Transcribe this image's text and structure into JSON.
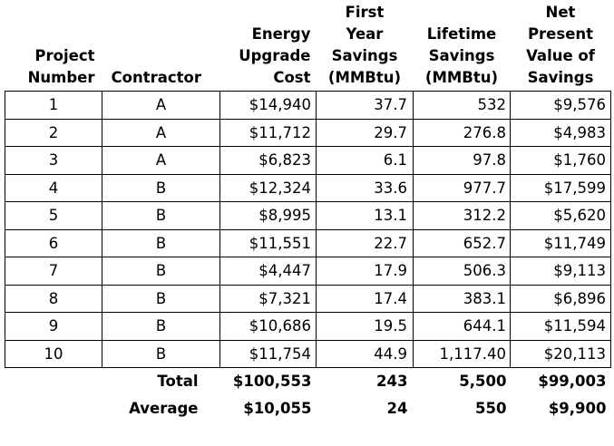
{
  "headers": {
    "project_number": [
      "Project",
      "Number"
    ],
    "contractor": [
      "Contractor"
    ],
    "energy_upgrade_cost": [
      "Energy",
      "Upgrade",
      "Cost"
    ],
    "first_year_savings": [
      "First",
      "Year",
      "Savings",
      "(MMBtu)"
    ],
    "lifetime_savings": [
      "Lifetime",
      "Savings",
      "(MMBtu)"
    ],
    "npv_savings": [
      "Net",
      "Present",
      "Value of",
      "Savings"
    ]
  },
  "rows": [
    {
      "project": "1",
      "contractor": "A",
      "cost": "$14,940",
      "first_year": "37.7",
      "lifetime": "532",
      "npv": "$9,576"
    },
    {
      "project": "2",
      "contractor": "A",
      "cost": "$11,712",
      "first_year": "29.7",
      "lifetime": "276.8",
      "npv": "$4,983"
    },
    {
      "project": "3",
      "contractor": "A",
      "cost": "$6,823",
      "first_year": "6.1",
      "lifetime": "97.8",
      "npv": "$1,760"
    },
    {
      "project": "4",
      "contractor": "B",
      "cost": "$12,324",
      "first_year": "33.6",
      "lifetime": "977.7",
      "npv": "$17,599"
    },
    {
      "project": "5",
      "contractor": "B",
      "cost": "$8,995",
      "first_year": "13.1",
      "lifetime": "312.2",
      "npv": "$5,620"
    },
    {
      "project": "6",
      "contractor": "B",
      "cost": "$11,551",
      "first_year": "22.7",
      "lifetime": "652.7",
      "npv": "$11,749"
    },
    {
      "project": "7",
      "contractor": "B",
      "cost": "$4,447",
      "first_year": "17.9",
      "lifetime": "506.3",
      "npv": "$9,113"
    },
    {
      "project": "8",
      "contractor": "B",
      "cost": "$7,321",
      "first_year": "17.4",
      "lifetime": "383.1",
      "npv": "$6,896"
    },
    {
      "project": "9",
      "contractor": "B",
      "cost": "$10,686",
      "first_year": "19.5",
      "lifetime": "644.1",
      "npv": "$11,594"
    },
    {
      "project": "10",
      "contractor": "B",
      "cost": "$11,754",
      "first_year": "44.9",
      "lifetime": "1,117.40",
      "npv": "$20,113"
    }
  ],
  "summary": {
    "total": {
      "label": "Total",
      "cost": "$100,553",
      "first_year": "243",
      "lifetime": "5,500",
      "npv": "$99,003"
    },
    "average": {
      "label": "Average",
      "cost": "$10,055",
      "first_year": "24",
      "lifetime": "550",
      "npv": "$9,900"
    }
  }
}
